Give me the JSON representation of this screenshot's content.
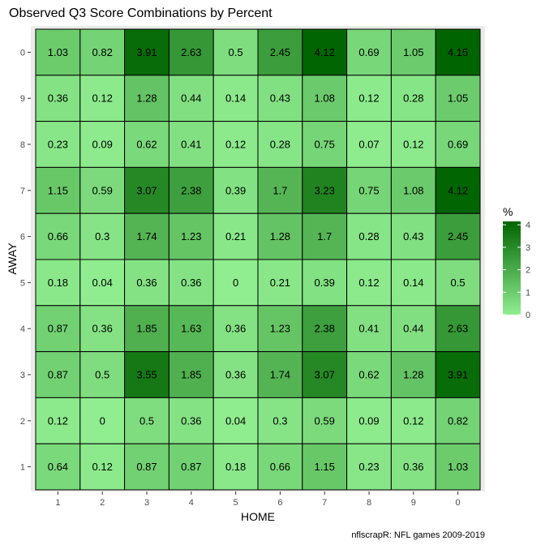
{
  "chart_data": {
    "type": "heatmap",
    "title": "Observed Q3 Score Combinations by Percent",
    "xlabel": "HOME",
    "ylabel": "AWAY",
    "x_categories": [
      "1",
      "2",
      "3",
      "4",
      "5",
      "6",
      "7",
      "8",
      "9",
      "0"
    ],
    "y_categories_top_to_bottom": [
      "0",
      "9",
      "8",
      "7",
      "6",
      "5",
      "4",
      "3",
      "2",
      "1"
    ],
    "values": [
      [
        1.03,
        0.82,
        3.91,
        2.63,
        0.5,
        2.45,
        4.12,
        0.69,
        1.05,
        4.15
      ],
      [
        0.36,
        0.12,
        1.28,
        0.44,
        0.14,
        0.43,
        1.08,
        0.12,
        0.28,
        1.05
      ],
      [
        0.23,
        0.09,
        0.62,
        0.41,
        0.12,
        0.28,
        0.75,
        0.07,
        0.12,
        0.69
      ],
      [
        1.15,
        0.59,
        3.07,
        2.38,
        0.39,
        1.7,
        3.23,
        0.75,
        1.08,
        4.12
      ],
      [
        0.66,
        0.3,
        1.74,
        1.23,
        0.21,
        1.28,
        1.7,
        0.28,
        0.43,
        2.45
      ],
      [
        0.18,
        0.04,
        0.36,
        0.36,
        0,
        0.21,
        0.39,
        0.12,
        0.14,
        0.5
      ],
      [
        0.87,
        0.36,
        1.85,
        1.63,
        0.36,
        1.23,
        2.38,
        0.41,
        0.44,
        2.63
      ],
      [
        0.87,
        0.5,
        3.55,
        1.85,
        0.36,
        1.74,
        3.07,
        0.62,
        1.28,
        3.91
      ],
      [
        0.12,
        0,
        0.5,
        0.36,
        0.04,
        0.3,
        0.59,
        0.09,
        0.12,
        0.82
      ],
      [
        0.64,
        0.12,
        0.87,
        0.87,
        0.18,
        0.66,
        1.15,
        0.23,
        0.36,
        1.03
      ]
    ],
    "legend": {
      "title": "%",
      "ticks": [
        "0",
        "1",
        "2",
        "3",
        "4"
      ],
      "tick_values": [
        0,
        1,
        2,
        3,
        4
      ],
      "range": [
        0,
        4.15
      ],
      "color_low": "#90ee90",
      "color_high": "#006400",
      "placement": "right"
    },
    "grid": false,
    "panel_background": "#ebebeb",
    "cell_border_color": "#000000",
    "caption": "nflscrapR: NFL games 2009-2019"
  }
}
